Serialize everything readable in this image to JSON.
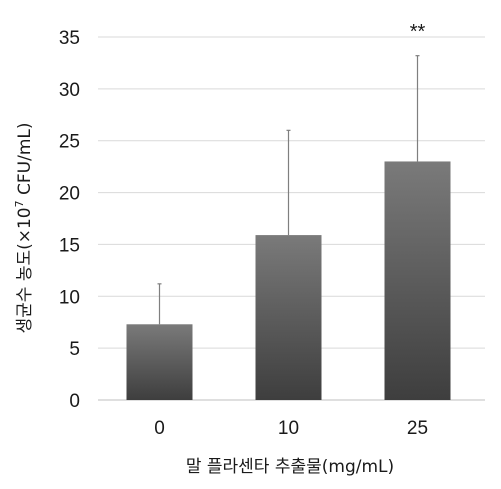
{
  "chart_data": {
    "type": "bar",
    "categories": [
      "0",
      "10",
      "25"
    ],
    "values": [
      7.3,
      15.9,
      23.0
    ],
    "error_upper": [
      11.2,
      26.0,
      33.2
    ],
    "annotations": [
      {
        "category": "25",
        "text": "**"
      }
    ],
    "title": "",
    "xlabel": "말 플라센타 추출물(mg/mL)",
    "ylabel_main": "생균수 농도(×10",
    "ylabel_exp": "7",
    "ylabel_unit": " CFU/mL)",
    "ylim": [
      0,
      35
    ],
    "yticks": [
      0,
      5,
      10,
      15,
      20,
      25,
      30,
      35
    ],
    "grid": true,
    "legend": "none",
    "colors": {
      "bar_top": "#7a7a7a",
      "bar_bottom": "#3e3e3e",
      "error": "#7f7f7f"
    }
  }
}
